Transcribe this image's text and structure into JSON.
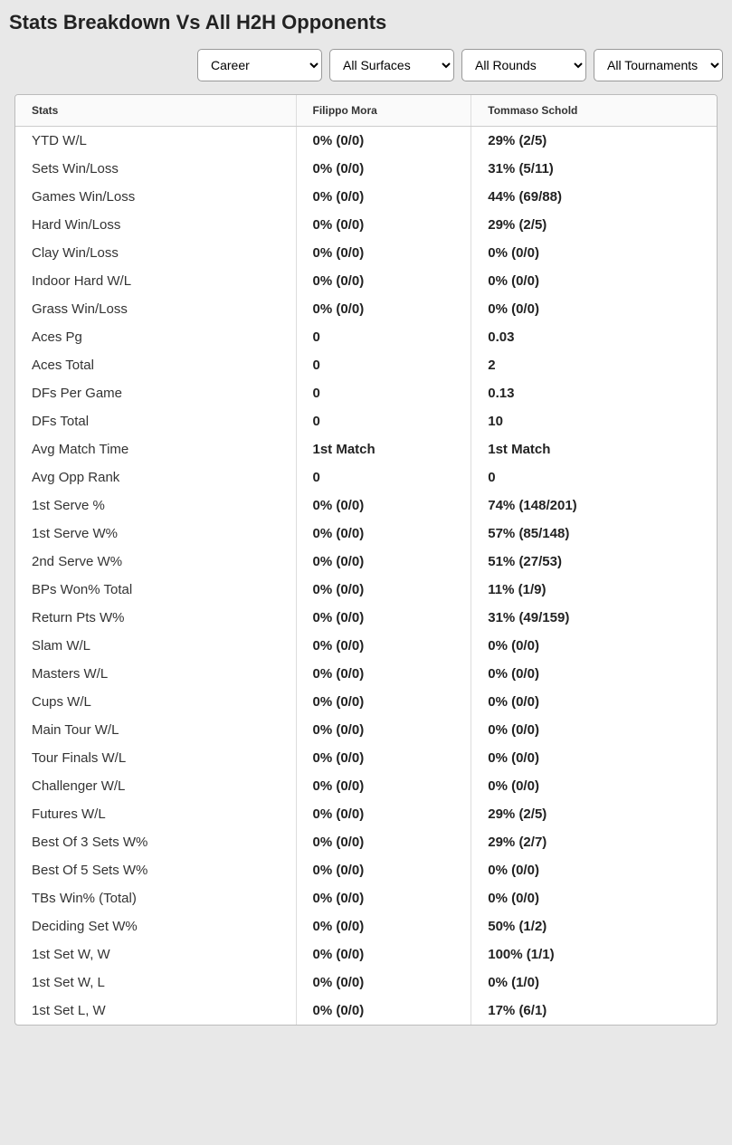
{
  "title": "Stats Breakdown Vs All H2H Opponents",
  "filters": {
    "period": "Career",
    "surface": "All Surfaces",
    "round": "All Rounds",
    "tournament": "All Tournaments"
  },
  "table": {
    "headers": {
      "stats": "Stats",
      "player1": "Filippo Mora",
      "player2": "Tommaso Schold"
    },
    "rows": [
      {
        "label": "YTD W/L",
        "p1": "0% (0/0)",
        "p2": "29% (2/5)"
      },
      {
        "label": "Sets Win/Loss",
        "p1": "0% (0/0)",
        "p2": "31% (5/11)"
      },
      {
        "label": "Games Win/Loss",
        "p1": "0% (0/0)",
        "p2": "44% (69/88)"
      },
      {
        "label": "Hard Win/Loss",
        "p1": "0% (0/0)",
        "p2": "29% (2/5)"
      },
      {
        "label": "Clay Win/Loss",
        "p1": "0% (0/0)",
        "p2": "0% (0/0)"
      },
      {
        "label": "Indoor Hard W/L",
        "p1": "0% (0/0)",
        "p2": "0% (0/0)"
      },
      {
        "label": "Grass Win/Loss",
        "p1": "0% (0/0)",
        "p2": "0% (0/0)"
      },
      {
        "label": "Aces Pg",
        "p1": "0",
        "p2": "0.03"
      },
      {
        "label": "Aces Total",
        "p1": "0",
        "p2": "2"
      },
      {
        "label": "DFs Per Game",
        "p1": "0",
        "p2": "0.13"
      },
      {
        "label": "DFs Total",
        "p1": "0",
        "p2": "10"
      },
      {
        "label": "Avg Match Time",
        "p1": "1st Match",
        "p2": "1st Match"
      },
      {
        "label": "Avg Opp Rank",
        "p1": "0",
        "p2": "0"
      },
      {
        "label": "1st Serve %",
        "p1": "0% (0/0)",
        "p2": "74% (148/201)"
      },
      {
        "label": "1st Serve W%",
        "p1": "0% (0/0)",
        "p2": "57% (85/148)"
      },
      {
        "label": "2nd Serve W%",
        "p1": "0% (0/0)",
        "p2": "51% (27/53)"
      },
      {
        "label": "BPs Won% Total",
        "p1": "0% (0/0)",
        "p2": "11% (1/9)"
      },
      {
        "label": "Return Pts W%",
        "p1": "0% (0/0)",
        "p2": "31% (49/159)"
      },
      {
        "label": "Slam W/L",
        "p1": "0% (0/0)",
        "p2": "0% (0/0)"
      },
      {
        "label": "Masters W/L",
        "p1": "0% (0/0)",
        "p2": "0% (0/0)"
      },
      {
        "label": "Cups W/L",
        "p1": "0% (0/0)",
        "p2": "0% (0/0)"
      },
      {
        "label": "Main Tour W/L",
        "p1": "0% (0/0)",
        "p2": "0% (0/0)"
      },
      {
        "label": "Tour Finals W/L",
        "p1": "0% (0/0)",
        "p2": "0% (0/0)"
      },
      {
        "label": "Challenger W/L",
        "p1": "0% (0/0)",
        "p2": "0% (0/0)"
      },
      {
        "label": "Futures W/L",
        "p1": "0% (0/0)",
        "p2": "29% (2/5)"
      },
      {
        "label": "Best Of 3 Sets W%",
        "p1": "0% (0/0)",
        "p2": "29% (2/7)"
      },
      {
        "label": "Best Of 5 Sets W%",
        "p1": "0% (0/0)",
        "p2": "0% (0/0)"
      },
      {
        "label": "TBs Win% (Total)",
        "p1": "0% (0/0)",
        "p2": "0% (0/0)"
      },
      {
        "label": "Deciding Set W%",
        "p1": "0% (0/0)",
        "p2": "50% (1/2)"
      },
      {
        "label": "1st Set W, W",
        "p1": "0% (0/0)",
        "p2": "100% (1/1)"
      },
      {
        "label": "1st Set W, L",
        "p1": "0% (0/0)",
        "p2": "0% (1/0)"
      },
      {
        "label": "1st Set L, W",
        "p1": "0% (0/0)",
        "p2": "17% (6/1)"
      }
    ]
  },
  "colors": {
    "page_bg": "#e8e8e8",
    "card_bg": "#ffffff",
    "border": "#bbbbbb",
    "header_bg": "#fafafa",
    "text": "#222222"
  }
}
